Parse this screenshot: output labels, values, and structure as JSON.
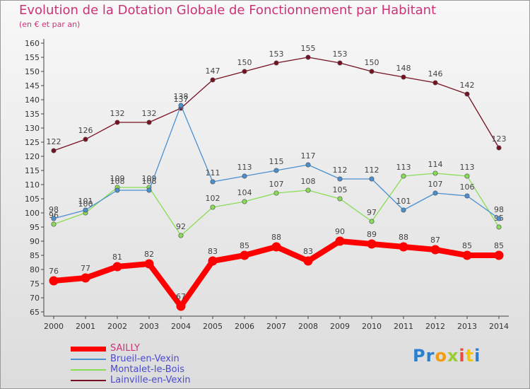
{
  "title": "Evolution de la Dotation Globale de Fonctionnement par Habitant",
  "subtitle": "(en € et par an)",
  "logo": [
    "P",
    "r",
    "o",
    "x",
    "i",
    "t",
    "i"
  ],
  "logo_colors": [
    "#2a7fcf",
    "#2a7fcf",
    "#f39c12",
    "#9acd32",
    "#e74c3c",
    "#f1c40f",
    "#2a7fcf"
  ],
  "chart_data": {
    "type": "line",
    "title": "Evolution de la Dotation Globale de Fonctionnement par Habitant",
    "ylabel": "(en € et par an)",
    "xlabel": "",
    "categories": [
      "2000",
      "2001",
      "2002",
      "2003",
      "2004",
      "2005",
      "2006",
      "2007",
      "2008",
      "2009",
      "2010",
      "2011",
      "2012",
      "2013",
      "2014"
    ],
    "ylim": [
      65,
      160
    ],
    "yticks": [
      65,
      70,
      75,
      80,
      85,
      90,
      95,
      100,
      105,
      110,
      115,
      120,
      125,
      130,
      135,
      140,
      145,
      150,
      155,
      160
    ],
    "grid": false,
    "legend": "bottom-left",
    "series": [
      {
        "name": "SAILLY",
        "color": "#ff0000",
        "values": [
          76,
          77,
          81,
          82,
          67,
          83,
          85,
          88,
          83,
          90,
          89,
          88,
          87,
          85,
          85
        ]
      },
      {
        "name": "Brueil-en-Vexin",
        "color": "#4a8fd0",
        "values": [
          98,
          101,
          108,
          108,
          138,
          111,
          113,
          115,
          117,
          112,
          112,
          101,
          107,
          106,
          98
        ]
      },
      {
        "name": "Montalet-le-Bois",
        "color": "#88dd55",
        "values": [
          96,
          100,
          109,
          109,
          92,
          102,
          104,
          107,
          108,
          105,
          97,
          113,
          114,
          113,
          95
        ]
      },
      {
        "name": "Lainville-en-Vexin",
        "color": "#771122",
        "values": [
          122,
          126,
          132,
          132,
          137,
          147,
          150,
          153,
          155,
          153,
          150,
          148,
          146,
          142,
          123
        ]
      }
    ]
  }
}
